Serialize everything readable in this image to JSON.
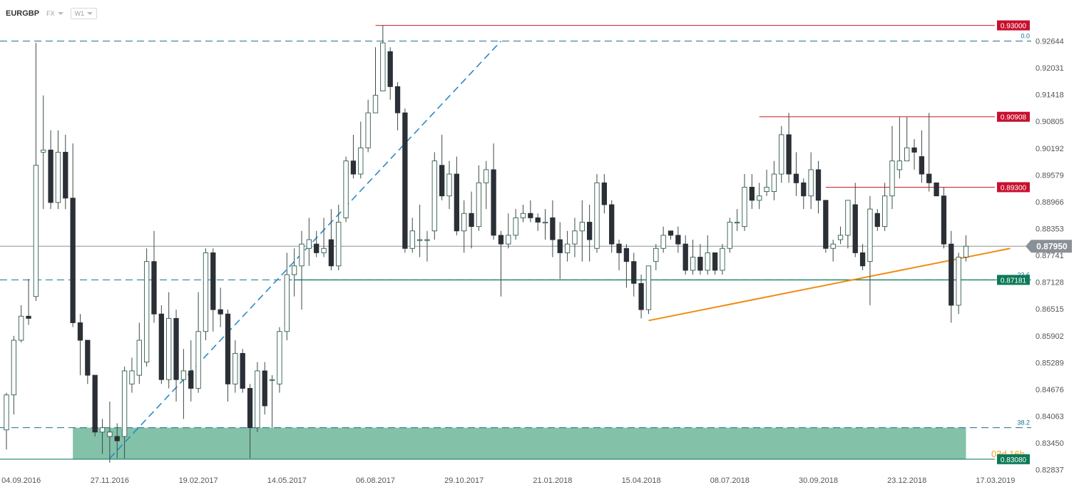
{
  "header": {
    "symbol": "EURGBP",
    "market": "FX",
    "timeframe": "W1"
  },
  "colors": {
    "candle_up": "#ffffff",
    "candle_down": "#2b2f36",
    "candle_outline": "#2f5d4f",
    "wick": "#3d4a47",
    "fib_line": "#1a6e8e",
    "resistance": "#c81d25",
    "support_zone": "#6db69a",
    "support_zone_edge": "#17806a",
    "trendline_orange": "#f08c12",
    "trendline_blue": "#2a8ac4",
    "current_price": "#7a8288",
    "tag_red": "#c8102e",
    "tag_green": "#0e7a57",
    "tag_grey": "#8a9196"
  },
  "chart_data": {
    "type": "candlestick",
    "symbol": "EURGBP",
    "timeframe": "W1",
    "ylim": [
      0.8262,
      0.9345
    ],
    "y_ticks": [
      "0.92644",
      "0.92031",
      "0.91418",
      "0.90805",
      "0.90192",
      "0.89579",
      "0.88966",
      "0.88353",
      "0.87741",
      "0.87128",
      "0.86515",
      "0.85902",
      "0.85289",
      "0.84676",
      "0.84063",
      "0.83450",
      "0.82837"
    ],
    "x_ticks": [
      {
        "label": "04.09.2016",
        "i": 2
      },
      {
        "label": "27.11.2016",
        "i": 14
      },
      {
        "label": "19.02.2017",
        "i": 26
      },
      {
        "label": "14.05.2017",
        "i": 38
      },
      {
        "label": "06.08.2017",
        "i": 50
      },
      {
        "label": "29.10.2017",
        "i": 62
      },
      {
        "label": "21.01.2018",
        "i": 74
      },
      {
        "label": "15.04.2018",
        "i": 86
      },
      {
        "label": "08.07.2018",
        "i": 98
      },
      {
        "label": "30.09.2018",
        "i": 110
      },
      {
        "label": "23.12.2018",
        "i": 122
      },
      {
        "label": "17.03.2019",
        "i": 134
      }
    ],
    "candles": [
      [
        0.8375,
        0.8455,
        0.833,
        0.846
      ],
      [
        0.8455,
        0.858,
        0.841,
        0.859
      ],
      [
        0.858,
        0.8635,
        0.8575,
        0.866
      ],
      [
        0.8635,
        0.863,
        0.8615,
        0.872
      ],
      [
        0.868,
        0.898,
        0.867,
        0.926
      ],
      [
        0.901,
        0.9015,
        0.888,
        0.914
      ],
      [
        0.9015,
        0.8895,
        0.888,
        0.906
      ],
      [
        0.8895,
        0.901,
        0.888,
        0.906
      ],
      [
        0.901,
        0.8905,
        0.888,
        0.905
      ],
      [
        0.8905,
        0.862,
        0.861,
        0.903
      ],
      [
        0.862,
        0.858,
        0.85,
        0.864
      ],
      [
        0.858,
        0.85,
        0.848,
        0.858
      ],
      [
        0.85,
        0.837,
        0.836,
        0.85
      ],
      [
        0.837,
        0.838,
        0.832,
        0.84
      ],
      [
        0.836,
        0.837,
        0.83,
        0.844
      ],
      [
        0.836,
        0.835,
        0.831,
        0.839
      ],
      [
        0.836,
        0.851,
        0.831,
        0.852
      ],
      [
        0.848,
        0.851,
        0.846,
        0.854
      ],
      [
        0.85,
        0.858,
        0.848,
        0.862
      ],
      [
        0.853,
        0.876,
        0.852,
        0.879
      ],
      [
        0.876,
        0.864,
        0.862,
        0.883
      ],
      [
        0.864,
        0.849,
        0.848,
        0.866
      ],
      [
        0.849,
        0.863,
        0.847,
        0.869
      ],
      [
        0.863,
        0.849,
        0.844,
        0.865
      ],
      [
        0.849,
        0.851,
        0.84,
        0.856
      ],
      [
        0.851,
        0.847,
        0.844,
        0.858
      ],
      [
        0.847,
        0.86,
        0.846,
        0.869
      ],
      [
        0.86,
        0.878,
        0.858,
        0.879
      ],
      [
        0.878,
        0.865,
        0.86,
        0.879
      ],
      [
        0.865,
        0.864,
        0.861,
        0.87
      ],
      [
        0.864,
        0.848,
        0.844,
        0.865
      ],
      [
        0.848,
        0.855,
        0.846,
        0.858
      ],
      [
        0.855,
        0.847,
        0.846,
        0.856
      ],
      [
        0.847,
        0.838,
        0.831,
        0.848
      ],
      [
        0.838,
        0.851,
        0.837,
        0.853
      ],
      [
        0.851,
        0.843,
        0.841,
        0.853
      ],
      [
        0.849,
        0.849,
        0.838,
        0.85
      ],
      [
        0.848,
        0.86,
        0.846,
        0.861
      ],
      [
        0.86,
        0.873,
        0.858,
        0.878
      ],
      [
        0.873,
        0.875,
        0.868,
        0.879
      ],
      [
        0.875,
        0.88,
        0.865,
        0.883
      ],
      [
        0.879,
        0.881,
        0.875,
        0.886
      ],
      [
        0.88,
        0.878,
        0.877,
        0.883
      ],
      [
        0.878,
        0.879,
        0.877,
        0.886
      ],
      [
        0.881,
        0.875,
        0.874,
        0.888
      ],
      [
        0.875,
        0.885,
        0.874,
        0.889
      ],
      [
        0.886,
        0.899,
        0.885,
        0.9
      ],
      [
        0.899,
        0.896,
        0.895,
        0.905
      ],
      [
        0.896,
        0.902,
        0.895,
        0.908
      ],
      [
        0.902,
        0.91,
        0.901,
        0.913
      ],
      [
        0.91,
        0.914,
        0.91,
        0.925
      ],
      [
        0.915,
        0.926,
        0.915,
        0.93
      ],
      [
        0.924,
        0.916,
        0.913,
        0.925
      ],
      [
        0.916,
        0.91,
        0.906,
        0.917
      ],
      [
        0.91,
        0.879,
        0.878,
        0.911
      ],
      [
        0.879,
        0.883,
        0.878,
        0.886
      ],
      [
        0.881,
        0.881,
        0.877,
        0.889
      ],
      [
        0.881,
        0.881,
        0.876,
        0.883
      ],
      [
        0.883,
        0.899,
        0.881,
        0.901
      ],
      [
        0.898,
        0.891,
        0.89,
        0.905
      ],
      [
        0.891,
        0.896,
        0.888,
        0.899
      ],
      [
        0.896,
        0.883,
        0.882,
        0.9
      ],
      [
        0.883,
        0.887,
        0.878,
        0.89
      ],
      [
        0.887,
        0.884,
        0.879,
        0.892
      ],
      [
        0.884,
        0.894,
        0.883,
        0.898
      ],
      [
        0.894,
        0.897,
        0.888,
        0.899
      ],
      [
        0.897,
        0.882,
        0.881,
        0.903
      ],
      [
        0.882,
        0.88,
        0.868,
        0.883
      ],
      [
        0.88,
        0.882,
        0.879,
        0.887
      ],
      [
        0.882,
        0.886,
        0.881,
        0.888
      ],
      [
        0.886,
        0.887,
        0.885,
        0.889
      ],
      [
        0.887,
        0.886,
        0.885,
        0.89
      ],
      [
        0.886,
        0.885,
        0.883,
        0.887
      ],
      [
        0.885,
        0.885,
        0.881,
        0.888
      ],
      [
        0.886,
        0.881,
        0.877,
        0.89
      ],
      [
        0.881,
        0.878,
        0.872,
        0.885
      ],
      [
        0.878,
        0.88,
        0.876,
        0.883
      ],
      [
        0.88,
        0.883,
        0.877,
        0.886
      ],
      [
        0.883,
        0.885,
        0.876,
        0.89
      ],
      [
        0.885,
        0.881,
        0.876,
        0.889
      ],
      [
        0.879,
        0.894,
        0.878,
        0.896
      ],
      [
        0.894,
        0.889,
        0.887,
        0.896
      ],
      [
        0.889,
        0.88,
        0.878,
        0.89
      ],
      [
        0.88,
        0.878,
        0.874,
        0.881
      ],
      [
        0.879,
        0.876,
        0.87,
        0.88
      ],
      [
        0.876,
        0.871,
        0.868,
        0.878
      ],
      [
        0.871,
        0.865,
        0.863,
        0.873
      ],
      [
        0.865,
        0.875,
        0.864,
        0.875
      ],
      [
        0.876,
        0.879,
        0.874,
        0.88
      ],
      [
        0.879,
        0.882,
        0.878,
        0.884
      ],
      [
        0.883,
        0.882,
        0.881,
        0.883
      ],
      [
        0.882,
        0.88,
        0.878,
        0.884
      ],
      [
        0.88,
        0.874,
        0.873,
        0.882
      ],
      [
        0.874,
        0.877,
        0.873,
        0.881
      ],
      [
        0.877,
        0.874,
        0.873,
        0.88
      ],
      [
        0.874,
        0.878,
        0.873,
        0.882
      ],
      [
        0.878,
        0.874,
        0.873,
        0.878
      ],
      [
        0.874,
        0.879,
        0.873,
        0.88
      ],
      [
        0.879,
        0.885,
        0.878,
        0.886
      ],
      [
        0.885,
        0.885,
        0.883,
        0.888
      ],
      [
        0.884,
        0.893,
        0.883,
        0.896
      ],
      [
        0.893,
        0.89,
        0.888,
        0.896
      ],
      [
        0.89,
        0.891,
        0.888,
        0.894
      ],
      [
        0.892,
        0.893,
        0.891,
        0.897
      ],
      [
        0.892,
        0.896,
        0.89,
        0.899
      ],
      [
        0.896,
        0.905,
        0.894,
        0.907
      ],
      [
        0.905,
        0.896,
        0.894,
        0.91
      ],
      [
        0.896,
        0.894,
        0.891,
        0.901
      ],
      [
        0.894,
        0.891,
        0.888,
        0.895
      ],
      [
        0.891,
        0.897,
        0.888,
        0.901
      ],
      [
        0.897,
        0.89,
        0.887,
        0.899
      ],
      [
        0.89,
        0.879,
        0.878,
        0.89
      ],
      [
        0.879,
        0.88,
        0.876,
        0.881
      ],
      [
        0.881,
        0.882,
        0.88,
        0.884
      ],
      [
        0.882,
        0.89,
        0.879,
        0.89
      ],
      [
        0.889,
        0.878,
        0.877,
        0.894
      ],
      [
        0.878,
        0.875,
        0.874,
        0.88
      ],
      [
        0.876,
        0.888,
        0.866,
        0.891
      ],
      [
        0.887,
        0.884,
        0.883,
        0.888
      ],
      [
        0.884,
        0.891,
        0.883,
        0.894
      ],
      [
        0.891,
        0.899,
        0.888,
        0.907
      ],
      [
        0.897,
        0.899,
        0.895,
        0.909
      ],
      [
        0.899,
        0.902,
        0.899,
        0.909
      ],
      [
        0.902,
        0.901,
        0.897,
        0.904
      ],
      [
        0.9,
        0.896,
        0.894,
        0.906
      ],
      [
        0.896,
        0.894,
        0.892,
        0.91
      ],
      [
        0.894,
        0.891,
        0.892,
        0.893
      ],
      [
        0.891,
        0.88,
        0.879,
        0.893
      ],
      [
        0.88,
        0.866,
        0.862,
        0.883
      ],
      [
        0.866,
        0.877,
        0.864,
        0.878
      ],
      [
        0.877,
        0.8795,
        0.876,
        0.882
      ]
    ],
    "levels": [
      {
        "price": 0.93,
        "label": "0.93000",
        "kind": "resistance"
      },
      {
        "price": 0.9091,
        "label": "0.90908",
        "kind": "resistance"
      },
      {
        "price": 0.893,
        "label": "0.89300",
        "kind": "resistance"
      },
      {
        "price": 0.8718,
        "label": "0.87181",
        "kind": "support"
      },
      {
        "price": 0.8308,
        "label": "0.83080",
        "kind": "support"
      }
    ],
    "current_price": {
      "price": 0.8795,
      "label": "0.87950"
    },
    "fib_levels": [
      {
        "price": 0.9264,
        "label": "0.0"
      },
      {
        "price": 0.8718,
        "label": "23.6"
      },
      {
        "price": 0.838,
        "label": "38.2"
      }
    ],
    "countdown": "03d 16h",
    "trendlines": [
      {
        "kind": "blue",
        "from": {
          "i": 14,
          "price": 0.831
        },
        "to": {
          "i": 67,
          "price": 0.9264
        }
      },
      {
        "kind": "orange",
        "from": {
          "i": 87,
          "price": 0.8625
        },
        "to": {
          "i": 136,
          "price": 0.879
        }
      }
    ],
    "support_zone": {
      "from_i": 9,
      "to_i": 130,
      "low": 0.8308,
      "high": 0.838
    }
  }
}
